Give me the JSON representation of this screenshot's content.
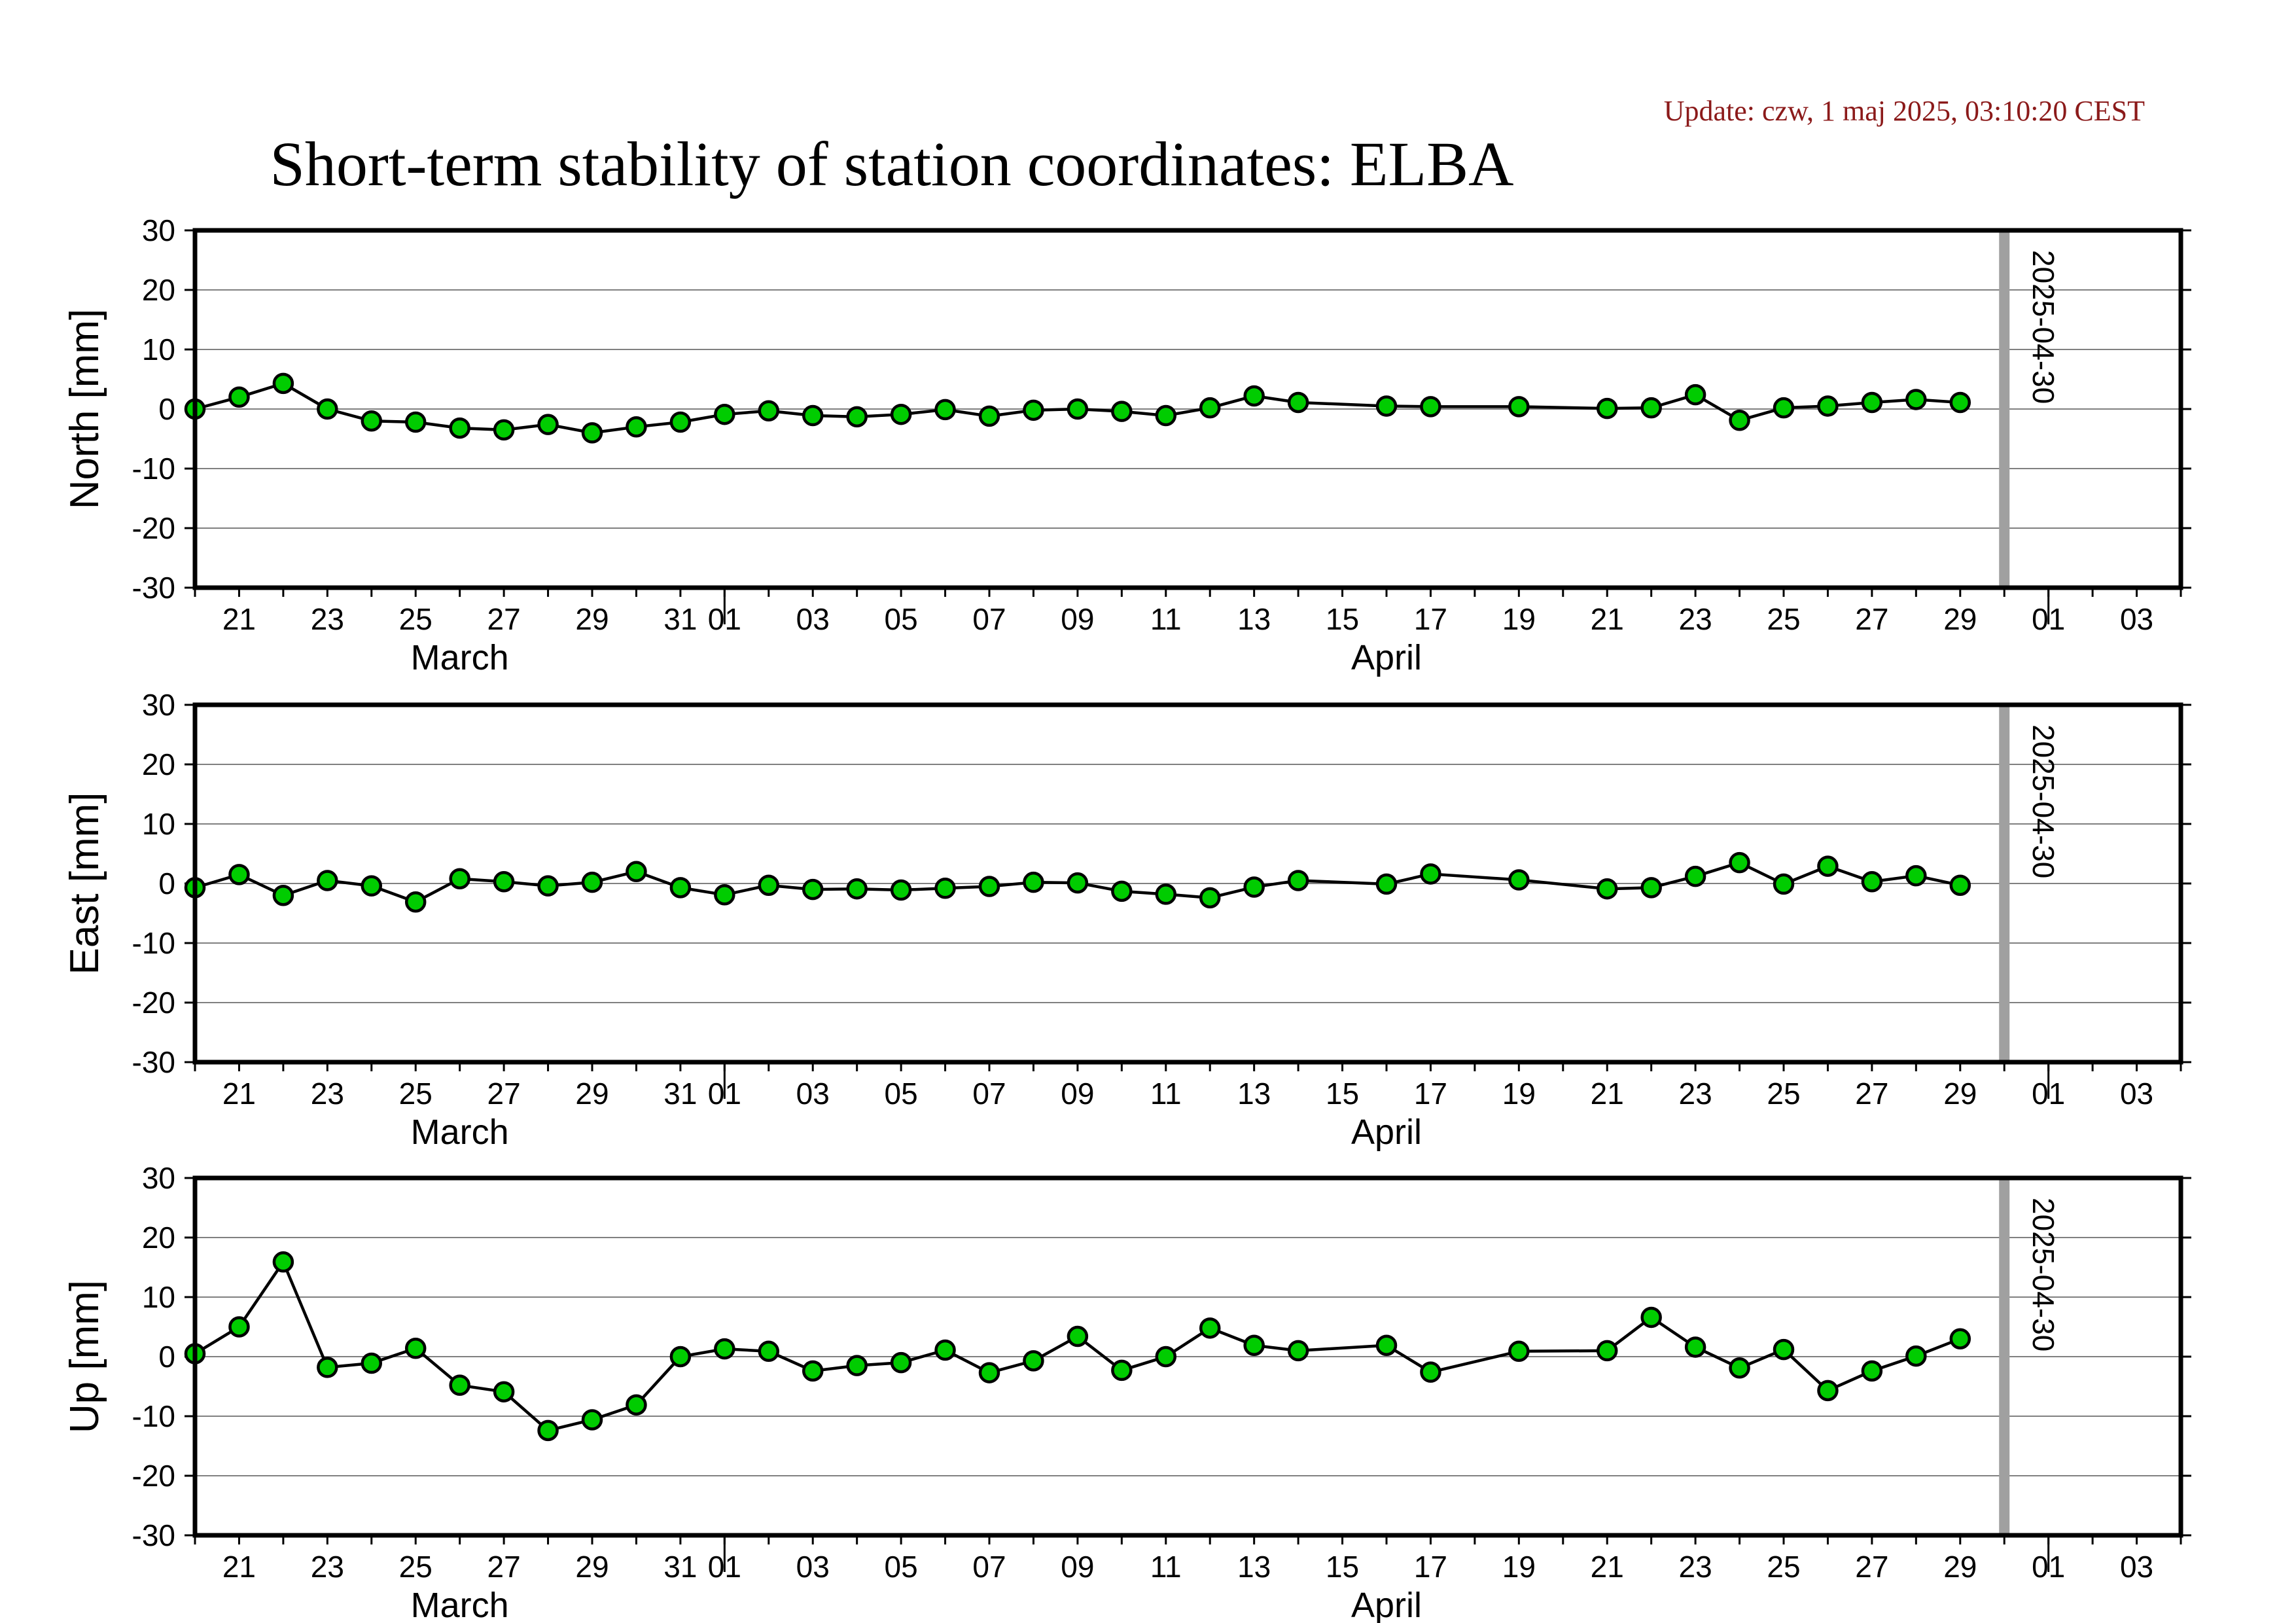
{
  "header": {
    "update_text": "Update: czw, 1 maj 2025, 03:10:20 CEST",
    "title": "Short-term stability of station coordinates: ELBA"
  },
  "colors": {
    "update_text": "#8b1a1a",
    "marker_fill": "#00cc00",
    "marker_stroke": "#000000",
    "line": "#000000",
    "grid": "#808080",
    "marker_line_current_day": "#a0a0a0"
  },
  "x_axis": {
    "start_date": "2025-03-20",
    "end_date": "2025-05-04",
    "tick_labels": [
      {
        "date": "2025-03-21",
        "label": "21"
      },
      {
        "date": "2025-03-23",
        "label": "23"
      },
      {
        "date": "2025-03-25",
        "label": "25"
      },
      {
        "date": "2025-03-27",
        "label": "27"
      },
      {
        "date": "2025-03-29",
        "label": "29"
      },
      {
        "date": "2025-03-31",
        "label": "31"
      },
      {
        "date": "2025-04-01",
        "label": "01"
      },
      {
        "date": "2025-04-03",
        "label": "03"
      },
      {
        "date": "2025-04-05",
        "label": "05"
      },
      {
        "date": "2025-04-07",
        "label": "07"
      },
      {
        "date": "2025-04-09",
        "label": "09"
      },
      {
        "date": "2025-04-11",
        "label": "11"
      },
      {
        "date": "2025-04-13",
        "label": "13"
      },
      {
        "date": "2025-04-15",
        "label": "15"
      },
      {
        "date": "2025-04-17",
        "label": "17"
      },
      {
        "date": "2025-04-19",
        "label": "19"
      },
      {
        "date": "2025-04-21",
        "label": "21"
      },
      {
        "date": "2025-04-23",
        "label": "23"
      },
      {
        "date": "2025-04-25",
        "label": "25"
      },
      {
        "date": "2025-04-27",
        "label": "27"
      },
      {
        "date": "2025-04-29",
        "label": "29"
      },
      {
        "date": "2025-05-01",
        "label": "01"
      },
      {
        "date": "2025-05-03",
        "label": "03"
      }
    ],
    "month_boundaries": [
      "2025-04-01",
      "2025-05-01"
    ],
    "month_labels": [
      {
        "date": "2025-03-26",
        "label": "March"
      },
      {
        "date": "2025-04-16",
        "label": "April"
      }
    ]
  },
  "chart_data": [
    {
      "type": "line",
      "ylabel": "North [mm]",
      "ylim": [
        -30,
        30
      ],
      "yticks": [
        -30,
        -20,
        -10,
        0,
        10,
        20,
        30
      ],
      "grid": true,
      "marker_date": "2025-04-30",
      "marker_label": "2025-04-30",
      "x": [
        "2025-03-20",
        "2025-03-21",
        "2025-03-22",
        "2025-03-23",
        "2025-03-24",
        "2025-03-25",
        "2025-03-26",
        "2025-03-27",
        "2025-03-28",
        "2025-03-29",
        "2025-03-30",
        "2025-03-31",
        "2025-04-01",
        "2025-04-02",
        "2025-04-03",
        "2025-04-04",
        "2025-04-05",
        "2025-04-06",
        "2025-04-07",
        "2025-04-08",
        "2025-04-09",
        "2025-04-10",
        "2025-04-11",
        "2025-04-12",
        "2025-04-13",
        "2025-04-14",
        "2025-04-16",
        "2025-04-17",
        "2025-04-19",
        "2025-04-21",
        "2025-04-22",
        "2025-04-23",
        "2025-04-24",
        "2025-04-25",
        "2025-04-26",
        "2025-04-27",
        "2025-04-28",
        "2025-04-29"
      ],
      "values": [
        0.0,
        2.0,
        4.3,
        0.0,
        -2.0,
        -2.2,
        -3.2,
        -3.5,
        -2.6,
        -4.0,
        -3.0,
        -2.2,
        -0.9,
        -0.3,
        -1.1,
        -1.3,
        -0.9,
        -0.1,
        -1.2,
        -0.2,
        0.0,
        -0.4,
        -1.1,
        0.2,
        2.2,
        1.1,
        0.5,
        0.4,
        0.4,
        0.1,
        0.2,
        2.4,
        -1.9,
        0.2,
        0.5,
        1.1,
        1.6,
        1.1
      ]
    },
    {
      "type": "line",
      "ylabel": "East [mm]",
      "ylim": [
        -30,
        30
      ],
      "yticks": [
        -30,
        -20,
        -10,
        0,
        10,
        20,
        30
      ],
      "grid": true,
      "marker_date": "2025-04-30",
      "marker_label": "2025-04-30",
      "x": [
        "2025-03-20",
        "2025-03-21",
        "2025-03-22",
        "2025-03-23",
        "2025-03-24",
        "2025-03-25",
        "2025-03-26",
        "2025-03-27",
        "2025-03-28",
        "2025-03-29",
        "2025-03-30",
        "2025-03-31",
        "2025-04-01",
        "2025-04-02",
        "2025-04-03",
        "2025-04-04",
        "2025-04-05",
        "2025-04-06",
        "2025-04-07",
        "2025-04-08",
        "2025-04-09",
        "2025-04-10",
        "2025-04-11",
        "2025-04-12",
        "2025-04-13",
        "2025-04-14",
        "2025-04-16",
        "2025-04-17",
        "2025-04-19",
        "2025-04-21",
        "2025-04-22",
        "2025-04-23",
        "2025-04-24",
        "2025-04-25",
        "2025-04-26",
        "2025-04-27",
        "2025-04-28",
        "2025-04-29"
      ],
      "values": [
        -0.7,
        1.5,
        -2.0,
        0.5,
        -0.4,
        -3.1,
        0.8,
        0.3,
        -0.4,
        0.2,
        2.0,
        -0.7,
        -1.9,
        -0.3,
        -1.0,
        -0.9,
        -1.1,
        -0.8,
        -0.5,
        0.2,
        0.1,
        -1.3,
        -1.8,
        -2.4,
        -0.6,
        0.5,
        -0.1,
        1.6,
        0.6,
        -0.9,
        -0.7,
        1.2,
        3.5,
        -0.1,
        2.9,
        0.3,
        1.3,
        -0.3
      ]
    },
    {
      "type": "line",
      "ylabel": "Up [mm]",
      "ylim": [
        -30,
        30
      ],
      "yticks": [
        -30,
        -20,
        -10,
        0,
        10,
        20,
        30
      ],
      "grid": true,
      "marker_date": "2025-04-30",
      "marker_label": "2025-04-30",
      "x": [
        "2025-03-20",
        "2025-03-21",
        "2025-03-22",
        "2025-03-23",
        "2025-03-24",
        "2025-03-25",
        "2025-03-26",
        "2025-03-27",
        "2025-03-28",
        "2025-03-29",
        "2025-03-30",
        "2025-03-31",
        "2025-04-01",
        "2025-04-02",
        "2025-04-03",
        "2025-04-04",
        "2025-04-05",
        "2025-04-06",
        "2025-04-07",
        "2025-04-08",
        "2025-04-09",
        "2025-04-10",
        "2025-04-11",
        "2025-04-12",
        "2025-04-13",
        "2025-04-14",
        "2025-04-16",
        "2025-04-17",
        "2025-04-19",
        "2025-04-21",
        "2025-04-22",
        "2025-04-23",
        "2025-04-24",
        "2025-04-25",
        "2025-04-26",
        "2025-04-27",
        "2025-04-28",
        "2025-04-29"
      ],
      "values": [
        0.5,
        5.0,
        15.9,
        -1.8,
        -1.1,
        1.4,
        -4.8,
        -5.9,
        -12.4,
        -10.6,
        -8.1,
        0.0,
        1.3,
        0.9,
        -2.4,
        -1.5,
        -1.0,
        1.1,
        -2.7,
        -0.7,
        3.4,
        -2.3,
        0.0,
        4.8,
        1.9,
        1.0,
        1.9,
        -2.6,
        0.9,
        1.0,
        6.6,
        1.6,
        -1.9,
        1.2,
        -5.7,
        -2.4,
        0.1,
        3.0
      ]
    }
  ]
}
